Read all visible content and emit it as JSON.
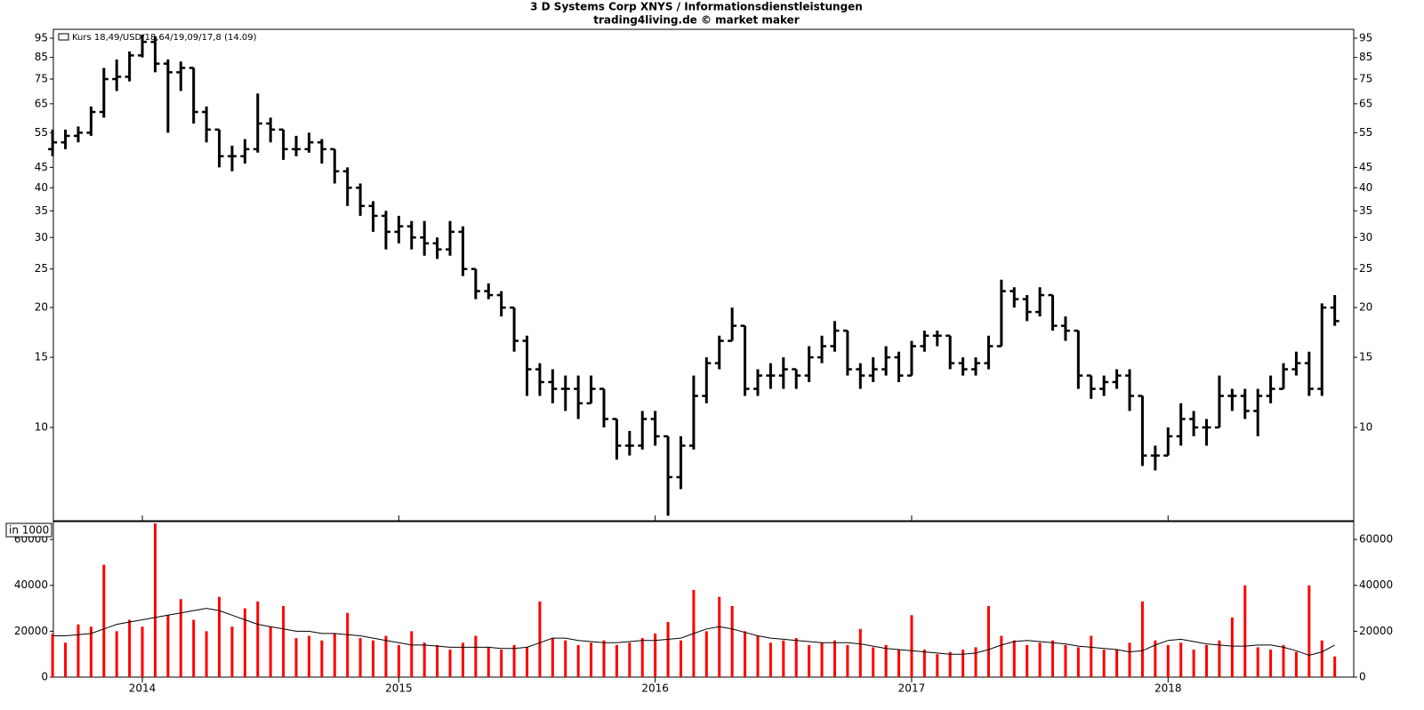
{
  "chart_data": [
    {
      "type": "ohlc",
      "title": "3 D Systems Corp XNYS / Informationsdienstleistungen",
      "subtitle": "trading4living.de © market maker",
      "x": [
        2013.65,
        2013.7,
        2013.75,
        2013.8,
        2013.85,
        2013.9,
        2013.95,
        2014.0,
        2014.05,
        2014.1,
        2014.15,
        2014.2,
        2014.25,
        2014.3,
        2014.35,
        2014.4,
        2014.45,
        2014.5,
        2014.55,
        2014.6,
        2014.65,
        2014.7,
        2014.75,
        2014.8,
        2014.85,
        2014.9,
        2014.95,
        2015.0,
        2015.05,
        2015.1,
        2015.15,
        2015.2,
        2015.25,
        2015.3,
        2015.35,
        2015.4,
        2015.45,
        2015.5,
        2015.55,
        2015.6,
        2015.65,
        2015.7,
        2015.75,
        2015.8,
        2015.85,
        2015.9,
        2015.95,
        2016.0,
        2016.05,
        2016.1,
        2016.15,
        2016.2,
        2016.25,
        2016.3,
        2016.35,
        2016.4,
        2016.45,
        2016.5,
        2016.55,
        2016.6,
        2016.65,
        2016.7,
        2016.75,
        2016.8,
        2016.85,
        2016.9,
        2016.95,
        2017.0,
        2017.05,
        2017.1,
        2017.15,
        2017.2,
        2017.25,
        2017.3,
        2017.35,
        2017.4,
        2017.45,
        2017.5,
        2017.55,
        2017.6,
        2017.65,
        2017.7,
        2017.75,
        2017.8,
        2017.85,
        2017.9,
        2017.95,
        2018.0,
        2018.05,
        2018.1,
        2018.15,
        2018.2,
        2018.25,
        2018.3,
        2018.35,
        2018.4,
        2018.45,
        2018.5,
        2018.55,
        2018.6,
        2018.65
      ],
      "series": [
        {
          "name": "Kurs 18,49/USD/18,64/19,09/17,8 (14.09)",
          "color": "#000000",
          "open": [
            50,
            52,
            54,
            55,
            62,
            75,
            76,
            86,
            93,
            82,
            78,
            80,
            62,
            56,
            48,
            48,
            50,
            58,
            56,
            50,
            50,
            52,
            50,
            44,
            40,
            36,
            34,
            31,
            32,
            30,
            29,
            28,
            31,
            25,
            22,
            21.5,
            20,
            16.5,
            14,
            13,
            12.5,
            12.5,
            11.5,
            12.5,
            10.5,
            9,
            9,
            10.5,
            9.5,
            7.5,
            9,
            12,
            14.5,
            16.5,
            18,
            12.5,
            13.5,
            13.5,
            14,
            13.5,
            15,
            16,
            17.5,
            14,
            13.5,
            14,
            15,
            13.5,
            16,
            17,
            17,
            14.5,
            14,
            14.5,
            16,
            22,
            21,
            19.5,
            21.5,
            18,
            17.5,
            13.5,
            12.5,
            13,
            13.5,
            12,
            8.5,
            8.5,
            9.5,
            10.5,
            10,
            10,
            12,
            12,
            11,
            12,
            12.5,
            14,
            14.5,
            12.5,
            20
          ],
          "high": [
            56,
            56,
            57,
            64,
            80,
            84,
            88,
            97,
            96,
            84,
            83,
            80,
            64,
            56,
            51,
            53,
            69,
            60,
            56,
            54,
            55,
            53,
            50,
            45,
            41,
            37,
            35,
            34,
            33,
            33,
            30,
            33,
            32,
            25,
            23,
            22,
            20,
            17,
            14.5,
            14,
            13.5,
            13.5,
            13.5,
            12.5,
            10.5,
            9.8,
            11,
            11,
            9.5,
            9.5,
            13.5,
            15,
            17,
            20,
            18,
            14,
            14.5,
            15,
            14,
            16,
            17,
            18.5,
            17.5,
            14.5,
            15,
            16,
            15.5,
            16.5,
            17.5,
            17.5,
            17,
            15,
            15,
            17,
            23.5,
            22.5,
            21.5,
            22.5,
            21.5,
            19,
            17.5,
            13.5,
            13.5,
            14,
            14,
            12,
            9,
            10,
            11.5,
            11,
            10.5,
            13.5,
            12.5,
            12.5,
            12.5,
            13.5,
            14.5,
            15.5,
            15.5,
            20.5,
            21.5
          ],
          "low": [
            48,
            50,
            52,
            54,
            60,
            70,
            74,
            85,
            78,
            55,
            70,
            58,
            52,
            45,
            44,
            46,
            49,
            52,
            47,
            48,
            49,
            46,
            41,
            36,
            34,
            31,
            28,
            29,
            28,
            27,
            26.5,
            27,
            24,
            21,
            21,
            19,
            15.5,
            12,
            12,
            11.5,
            11,
            10.5,
            11.5,
            10,
            8.3,
            8.5,
            8.8,
            9,
            6,
            7,
            8.8,
            11.5,
            14,
            16.5,
            12,
            12,
            12.5,
            12.5,
            12.5,
            13,
            14.5,
            15.5,
            13.5,
            12.5,
            13,
            13.5,
            13,
            13.5,
            15.5,
            16,
            14,
            13.5,
            13.5,
            14,
            16,
            20,
            18.5,
            19,
            17.5,
            16.5,
            12.5,
            11.8,
            12,
            12.5,
            11,
            8,
            7.8,
            8.5,
            9,
            9.5,
            9,
            10,
            11,
            10.5,
            9.5,
            11.5,
            12.5,
            13.5,
            12,
            12,
            18
          ],
          "close": [
            52,
            54,
            55,
            62,
            75,
            76,
            86,
            93,
            82,
            78,
            80,
            62,
            56,
            48,
            48,
            50,
            58,
            56,
            50,
            50,
            52,
            50,
            44,
            40,
            36,
            34,
            31,
            32,
            30,
            29,
            28,
            31,
            25,
            22,
            21.5,
            20,
            16.5,
            14,
            13,
            12.5,
            12.5,
            11.5,
            12.5,
            10.5,
            9,
            9,
            10.5,
            9.5,
            7.5,
            9,
            12,
            14.5,
            16.5,
            18,
            12.5,
            13.5,
            13.5,
            14,
            13.5,
            15,
            16,
            17.5,
            14,
            13.5,
            14,
            15,
            13.5,
            16,
            17,
            17,
            14.5,
            14,
            14.5,
            16,
            22,
            21,
            19.5,
            21.5,
            18,
            17.5,
            13.5,
            12.5,
            13,
            13.5,
            12,
            8.5,
            8.5,
            9.5,
            10.5,
            10,
            10,
            12,
            12,
            11,
            12,
            12.5,
            14,
            14.5,
            12.5,
            20,
            18.5
          ]
        }
      ],
      "xlim": [
        2013.653,
        2018.724
      ],
      "xticks": [
        2014,
        2015,
        2016,
        2017,
        2018
      ],
      "ylim": [
        5.83,
        100
      ],
      "yticks": [
        10,
        15,
        20,
        25,
        30,
        35,
        40,
        45,
        55,
        65,
        75,
        85,
        95
      ],
      "log": true
    },
    {
      "type": "bar",
      "label": "in 1000",
      "series": [
        {
          "color": "#ff0000",
          "values": [
            19000,
            15000,
            23000,
            22000,
            49000,
            20000,
            25000,
            22000,
            67000,
            27000,
            34000,
            25000,
            20000,
            35000,
            22000,
            30000,
            33000,
            22000,
            31000,
            17000,
            18000,
            16000,
            19000,
            28000,
            17000,
            16000,
            18000,
            14000,
            20000,
            15000,
            14000,
            12000,
            15000,
            18000,
            13000,
            12000,
            14000,
            13000,
            33000,
            17000,
            16000,
            14000,
            15000,
            16000,
            14000,
            15000,
            17000,
            19000,
            24000,
            16000,
            38000,
            20000,
            35000,
            31000,
            20000,
            18000,
            15000,
            16000,
            17000,
            14000,
            15000,
            16000,
            14000,
            21000,
            13000,
            14000,
            12000,
            27000,
            12000,
            10000,
            11000,
            12000,
            13000,
            31000,
            18000,
            16000,
            14000,
            15000,
            16000,
            14000,
            13000,
            18000,
            12000,
            12000,
            15000,
            33000,
            16000,
            14000,
            15000,
            12000,
            14000,
            16000,
            26000,
            40000,
            13000,
            12000,
            14000,
            11000,
            40000,
            16000,
            9000
          ]
        },
        {
          "type": "line",
          "color": "#000000",
          "values": [
            18000,
            18000,
            18500,
            19000,
            21000,
            23000,
            24000,
            25000,
            26000,
            27000,
            28000,
            29000,
            30000,
            29000,
            27000,
            25000,
            23000,
            22000,
            21000,
            20000,
            20000,
            19000,
            19000,
            18500,
            18000,
            17000,
            16000,
            15000,
            14000,
            14000,
            13500,
            13000,
            13000,
            13000,
            13000,
            12500,
            12500,
            13000,
            15000,
            17000,
            17000,
            16000,
            15500,
            15000,
            15000,
            15500,
            16000,
            16000,
            16500,
            17000,
            19000,
            21000,
            22000,
            21000,
            19500,
            18000,
            17000,
            16500,
            16000,
            15500,
            15000,
            15000,
            15000,
            14500,
            13500,
            12500,
            12000,
            11500,
            11000,
            10500,
            10000,
            10000,
            10500,
            12000,
            14000,
            15500,
            16000,
            15500,
            15000,
            14500,
            13500,
            13000,
            12500,
            12000,
            11000,
            11500,
            14000,
            16000,
            16500,
            15500,
            14500,
            14000,
            13500,
            13500,
            14000,
            14000,
            13000,
            11500,
            9500,
            11000,
            14000
          ]
        }
      ],
      "ylim": [
        0,
        67400
      ],
      "yticks": [
        0,
        20000,
        40000,
        60000
      ]
    }
  ]
}
